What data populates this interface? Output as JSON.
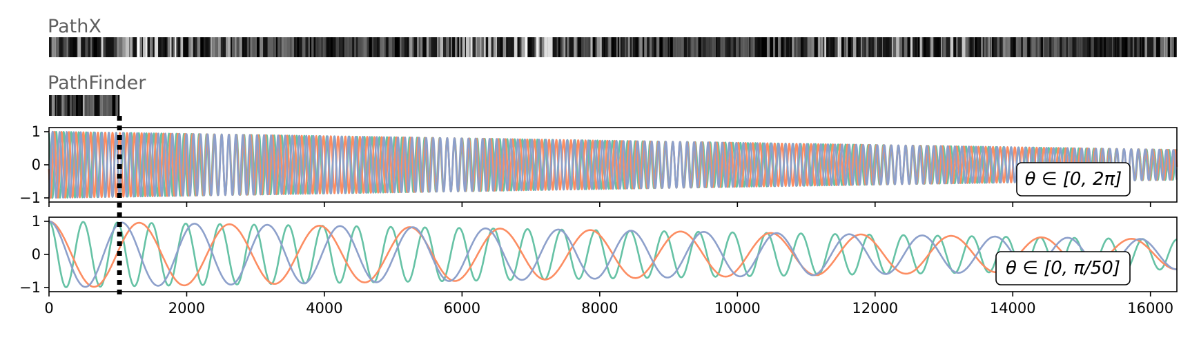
{
  "strips": [
    {
      "title": "PathX",
      "length": 16384
    },
    {
      "title": "PathFinder",
      "length": 1024
    }
  ],
  "colors": {
    "teal": "#66c2a5",
    "orange": "#fc8d62",
    "purple": "#8da0cb"
  },
  "chart_data": [
    {
      "type": "line",
      "annotation": "θ ∈ [0, 2π]",
      "xlim": [
        0,
        16384
      ],
      "ylim": [
        -1,
        1
      ],
      "yticks": [
        -1,
        0,
        1
      ],
      "ytick_labels": [
        "−1",
        "0",
        "1"
      ],
      "xticks": [
        0,
        2000,
        4000,
        6000,
        8000,
        10000,
        12000,
        14000,
        16000
      ],
      "xtick_labels_shown": false,
      "vline_x": 1024,
      "series": [
        {
          "color": "teal",
          "cycles": 150,
          "amp_start": 1.0,
          "amp_end": 0.45,
          "phase": 0.3
        },
        {
          "color": "orange",
          "cycles": 155,
          "amp_start": 1.0,
          "amp_end": 0.45,
          "phase": 1.7
        },
        {
          "color": "purple",
          "cycles": 160,
          "amp_start": 1.0,
          "amp_end": 0.45,
          "phase": 3.1
        }
      ]
    },
    {
      "type": "line",
      "annotation": "θ ∈ [0, π/50]",
      "xlim": [
        0,
        16384
      ],
      "ylim": [
        -1,
        1
      ],
      "yticks": [
        -1,
        0,
        1
      ],
      "ytick_labels": [
        "−1",
        "0",
        "1"
      ],
      "xticks": [
        0,
        2000,
        4000,
        6000,
        8000,
        10000,
        12000,
        14000,
        16000
      ],
      "xtick_labels": [
        "0",
        "2000",
        "4000",
        "6000",
        "8000",
        "10000",
        "12000",
        "14000",
        "16000"
      ],
      "vline_x": 1024,
      "series": [
        {
          "color": "teal",
          "cycles": 33,
          "amp_start": 1.0,
          "amp_end": 0.45,
          "phase": 0
        },
        {
          "color": "orange",
          "cycles": 12.5,
          "amp_start": 1.0,
          "amp_end": 0.45,
          "phase": 0
        },
        {
          "color": "purple",
          "cycles": 15.5,
          "amp_start": 1.0,
          "amp_end": 0.45,
          "phase": 0
        }
      ]
    }
  ]
}
